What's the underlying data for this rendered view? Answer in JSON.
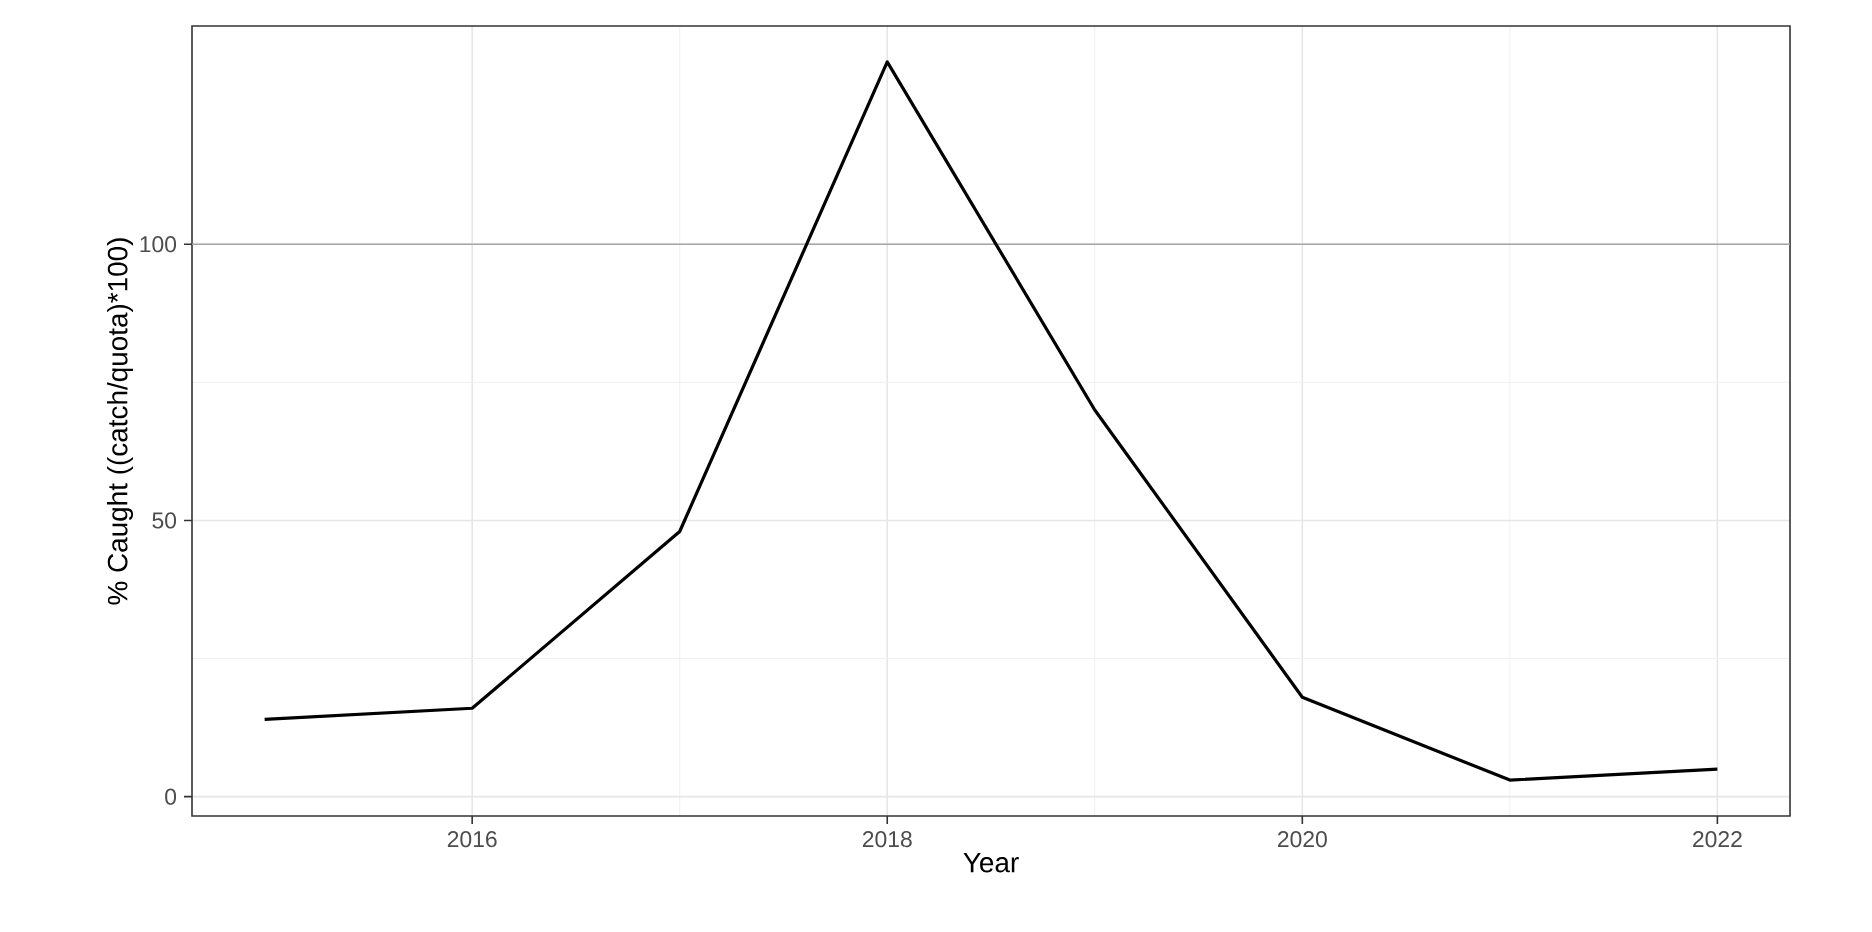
{
  "chart_data": {
    "type": "line",
    "xlabel": "Year",
    "ylabel": "% Caught ((catch/quota)*100)",
    "x": [
      2015,
      2016,
      2017,
      2018,
      2019,
      2020,
      2021,
      2022
    ],
    "series": [
      {
        "color": "#000000",
        "values": [
          14,
          16,
          48,
          133,
          70,
          18,
          3,
          5
        ]
      }
    ],
    "xlim": [
      2014.65,
      2022.35
    ],
    "ylim": [
      -3.5,
      139.5
    ],
    "xticks": [
      2016,
      2018,
      2020,
      2022
    ],
    "yticks": [
      0,
      50,
      100
    ],
    "ref_lines": [
      {
        "axis": "y",
        "value": 100,
        "color": "#a6a6a6"
      }
    ],
    "grid": true,
    "marker": "none",
    "line_style": "solid"
  }
}
